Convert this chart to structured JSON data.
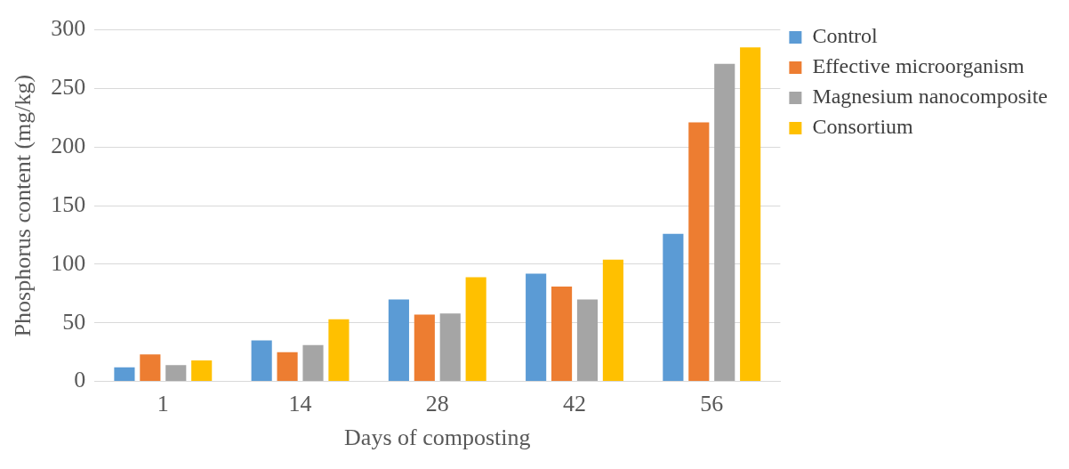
{
  "chart_data": {
    "type": "bar",
    "xlabel": "Days of composting",
    "ylabel": "Phosphorus content (mg/kg)",
    "categories": [
      "1",
      "14",
      "28",
      "42",
      "56"
    ],
    "series": [
      {
        "name": "Control",
        "color": "#5b9bd5",
        "values": [
          12,
          35,
          70,
          92,
          126
        ]
      },
      {
        "name": "Effective microorganism",
        "color": "#ed7d31",
        "values": [
          23,
          25,
          57,
          81,
          221
        ]
      },
      {
        "name": "Magnesium nanocomposite",
        "color": "#a5a5a5",
        "values": [
          14,
          31,
          58,
          70,
          271
        ]
      },
      {
        "name": "Consortium",
        "color": "#ffc000",
        "values": [
          18,
          53,
          89,
          104,
          285
        ]
      }
    ],
    "ylim": [
      0,
      300
    ],
    "yticks": [
      0,
      50,
      100,
      150,
      200,
      250,
      300
    ],
    "grid": "y",
    "legend": "top right"
  }
}
